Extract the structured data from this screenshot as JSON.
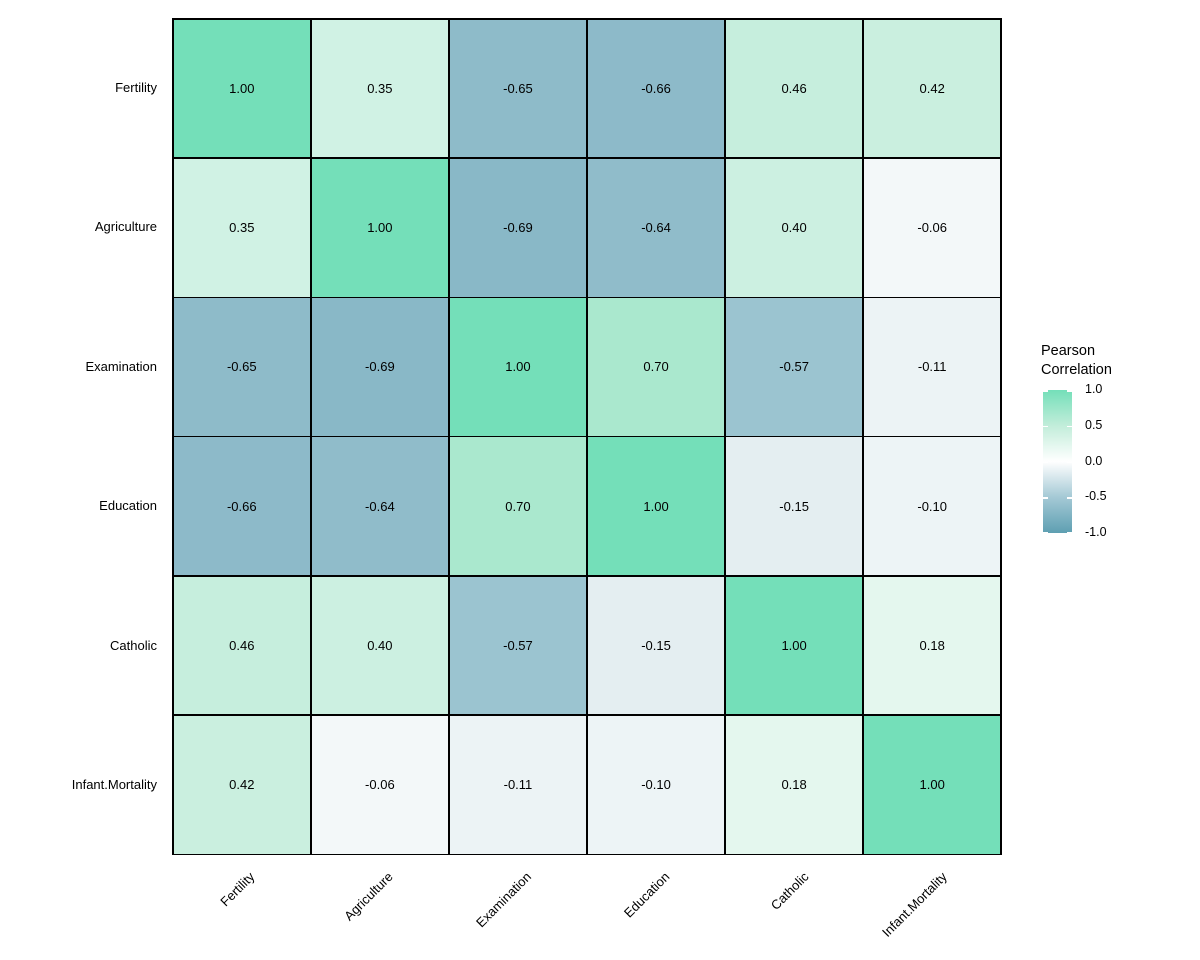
{
  "chart_data": {
    "type": "heatmap",
    "title": "",
    "variables": [
      "Fertility",
      "Agriculture",
      "Examination",
      "Education",
      "Catholic",
      "Infant.Mortality"
    ],
    "x_axis_labels": [
      "Fertility",
      "Agriculture",
      "Examination",
      "Education",
      "Catholic",
      "Infant.Mortality"
    ],
    "y_axis_labels": [
      "Fertility",
      "Agriculture",
      "Examination",
      "Education",
      "Catholic",
      "Infant.Mortality"
    ],
    "matrix": [
      [
        1.0,
        0.35,
        -0.65,
        -0.66,
        0.46,
        0.42
      ],
      [
        0.35,
        1.0,
        -0.69,
        -0.64,
        0.4,
        -0.06
      ],
      [
        -0.65,
        -0.69,
        1.0,
        0.7,
        -0.57,
        -0.11
      ],
      [
        -0.66,
        -0.64,
        0.7,
        1.0,
        -0.15,
        -0.1
      ],
      [
        0.46,
        0.4,
        -0.57,
        -0.15,
        1.0,
        0.18
      ],
      [
        0.42,
        -0.06,
        -0.11,
        -0.1,
        0.18,
        1.0
      ]
    ],
    "cell_labels": [
      [
        "1.00",
        "0.35",
        "-0.65",
        "-0.66",
        "0.46",
        "0.42"
      ],
      [
        "0.35",
        "1.00",
        "-0.69",
        "-0.64",
        "0.40",
        "-0.06"
      ],
      [
        "-0.65",
        "-0.69",
        "1.00",
        "0.70",
        "-0.57",
        "-0.11"
      ],
      [
        "-0.66",
        "-0.64",
        "0.70",
        "1.00",
        "-0.15",
        "-0.10"
      ],
      [
        "0.46",
        "0.40",
        "-0.57",
        "-0.15",
        "1.00",
        "0.18"
      ],
      [
        "0.42",
        "-0.06",
        "-0.11",
        "-0.10",
        "0.18",
        "1.00"
      ]
    ],
    "cell_colors": [
      [
        "#74DFB9",
        "#D0F2E4",
        "#8EBBC9",
        "#8DBAC9",
        "#C6EEDD",
        "#CAEFDF"
      ],
      [
        "#D0F2E4",
        "#74DFB9",
        "#89B8C7",
        "#90BCCA",
        "#CCF0E1",
        "#F3F8F9"
      ],
      [
        "#8EBBC9",
        "#89B8C7",
        "#74DFB9",
        "#AAE8CE",
        "#9BC4D0",
        "#ECF3F5"
      ],
      [
        "#8DBAC9",
        "#90BCCA",
        "#AAE8CE",
        "#74DFB9",
        "#E4EEF1",
        "#EDF4F6"
      ],
      [
        "#C6EEDD",
        "#CCF0E1",
        "#9BC4D0",
        "#E4EEF1",
        "#74DFB9",
        "#E4F7EE"
      ],
      [
        "#CAEFDF",
        "#F3F8F9",
        "#ECF3F5",
        "#EDF4F6",
        "#E4F7EE",
        "#74DFB9"
      ]
    ],
    "legend": {
      "title_line1": "Pearson",
      "title_line2": "Correlation",
      "ticks": [
        "1.0",
        "0.5",
        "0.0",
        "-0.5",
        "-1.0"
      ],
      "tick_values": [
        1.0,
        0.5,
        0.0,
        -0.5,
        -1.0
      ],
      "range": [
        -1,
        1
      ],
      "gradient_stops": [
        {
          "pos": 0,
          "color": "#74DFB9"
        },
        {
          "pos": 25,
          "color": "#C2EDDA"
        },
        {
          "pos": 50,
          "color": "#FFFFFF"
        },
        {
          "pos": 75,
          "color": "#A4C9D5"
        },
        {
          "pos": 100,
          "color": "#5E9FB2"
        }
      ]
    },
    "colors": {
      "high": "#74DFB9",
      "mid": "#FFFFFF",
      "low": "#5E9FB2",
      "grid_line": "#000000",
      "cell_text": "#000000",
      "axis_text": "#000000",
      "background": "#FFFFFF"
    },
    "layout_hints": {
      "grid": "black cell borders",
      "legend_position": "right",
      "x_label_rotation_deg": 45
    }
  }
}
